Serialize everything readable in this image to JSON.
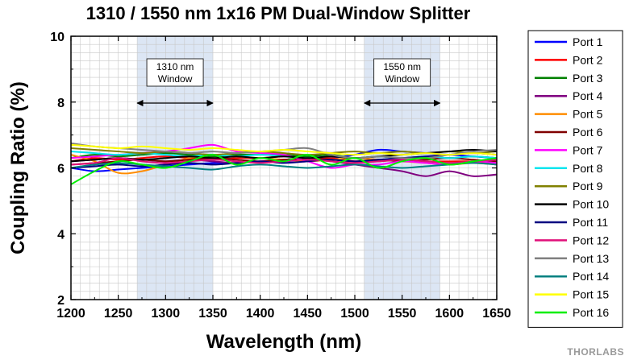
{
  "chart_data": {
    "type": "line",
    "title": "1310 / 1550 nm 1x16 PM Dual-Window Splitter",
    "xlabel": "Wavelength (nm)",
    "ylabel": "Coupling Ratio (%)",
    "xlim": [
      1200,
      1650
    ],
    "ylim": [
      2,
      10
    ],
    "xticks": [
      1200,
      1250,
      1300,
      1350,
      1400,
      1450,
      1500,
      1550,
      1600,
      1650
    ],
    "yticks": [
      2,
      4,
      6,
      8,
      10
    ],
    "grid": true,
    "legend_position": "right",
    "windows": [
      {
        "label_line1": "1310 nm",
        "label_line2": "Window",
        "x_start": 1270,
        "x_end": 1350
      },
      {
        "label_line1": "1550 nm",
        "label_line2": "Window",
        "x_start": 1510,
        "x_end": 1590
      }
    ],
    "x": [
      1200,
      1225,
      1250,
      1275,
      1300,
      1325,
      1350,
      1375,
      1400,
      1425,
      1450,
      1475,
      1500,
      1525,
      1550,
      1575,
      1600,
      1625,
      1650
    ],
    "series": [
      {
        "name": "Port 1",
        "color": "#0000ff",
        "values": [
          6.0,
          5.9,
          5.95,
          6.0,
          6.05,
          6.1,
          6.15,
          6.15,
          6.2,
          6.2,
          6.25,
          6.3,
          6.4,
          6.55,
          6.5,
          6.45,
          6.4,
          6.35,
          6.3
        ]
      },
      {
        "name": "Port 2",
        "color": "#ff0000",
        "values": [
          6.2,
          6.3,
          6.25,
          6.3,
          6.35,
          6.3,
          6.25,
          6.3,
          6.3,
          6.35,
          6.3,
          6.3,
          6.2,
          6.2,
          6.25,
          6.2,
          6.2,
          6.2,
          6.15
        ]
      },
      {
        "name": "Port 3",
        "color": "#008000",
        "values": [
          6.3,
          6.4,
          6.35,
          6.4,
          6.45,
          6.4,
          6.35,
          6.4,
          6.4,
          6.4,
          6.35,
          6.4,
          6.3,
          6.35,
          6.3,
          6.35,
          6.3,
          6.35,
          6.3
        ]
      },
      {
        "name": "Port 4",
        "color": "#800080",
        "values": [
          6.2,
          6.25,
          6.3,
          6.25,
          6.2,
          6.25,
          6.2,
          6.15,
          6.2,
          6.25,
          6.3,
          6.2,
          6.1,
          6.0,
          5.9,
          5.75,
          5.9,
          5.75,
          5.8
        ]
      },
      {
        "name": "Port 5",
        "color": "#ff8c00",
        "values": [
          6.4,
          6.2,
          5.85,
          5.9,
          6.1,
          6.3,
          6.4,
          6.35,
          6.3,
          6.25,
          6.2,
          6.25,
          6.3,
          6.25,
          6.2,
          6.15,
          6.1,
          6.15,
          6.1
        ]
      },
      {
        "name": "Port 6",
        "color": "#800000",
        "values": [
          6.1,
          6.15,
          6.2,
          6.25,
          6.2,
          6.25,
          6.3,
          6.25,
          6.2,
          6.25,
          6.3,
          6.25,
          6.2,
          6.25,
          6.2,
          6.25,
          6.3,
          6.25,
          6.2
        ]
      },
      {
        "name": "Port 7",
        "color": "#ff00ff",
        "values": [
          6.3,
          6.35,
          6.4,
          6.45,
          6.5,
          6.6,
          6.7,
          6.5,
          6.45,
          6.4,
          6.2,
          6.0,
          6.1,
          6.1,
          6.2,
          6.15,
          6.1,
          6.2,
          6.15
        ]
      },
      {
        "name": "Port 8",
        "color": "#00e5ee",
        "values": [
          6.5,
          6.45,
          6.4,
          6.45,
          6.4,
          6.35,
          6.4,
          6.35,
          6.4,
          6.35,
          6.3,
          6.35,
          6.3,
          6.35,
          6.3,
          6.35,
          6.3,
          6.35,
          6.3
        ]
      },
      {
        "name": "Port 9",
        "color": "#808000",
        "values": [
          6.6,
          6.55,
          6.5,
          6.45,
          6.5,
          6.45,
          6.4,
          6.45,
          6.5,
          6.45,
          6.4,
          6.45,
          6.5,
          6.45,
          6.5,
          6.45,
          6.5,
          6.45,
          6.5
        ]
      },
      {
        "name": "Port 10",
        "color": "#000000",
        "values": [
          6.2,
          6.25,
          6.3,
          6.25,
          6.3,
          6.35,
          6.3,
          6.35,
          6.3,
          6.35,
          6.3,
          6.35,
          6.3,
          6.35,
          6.4,
          6.45,
          6.5,
          6.55,
          6.5
        ]
      },
      {
        "name": "Port 11",
        "color": "#000080",
        "values": [
          6.0,
          6.05,
          6.1,
          6.05,
          6.1,
          6.15,
          6.1,
          6.15,
          6.2,
          6.15,
          6.2,
          6.25,
          6.2,
          6.25,
          6.3,
          6.35,
          6.4,
          6.45,
          6.4
        ]
      },
      {
        "name": "Port 12",
        "color": "#e0107a",
        "values": [
          6.1,
          6.15,
          6.3,
          6.2,
          6.15,
          6.2,
          6.25,
          6.2,
          6.15,
          6.2,
          6.25,
          6.2,
          6.15,
          6.2,
          6.25,
          6.2,
          6.15,
          6.2,
          6.25
        ]
      },
      {
        "name": "Port 13",
        "color": "#808080",
        "values": [
          6.75,
          6.65,
          6.6,
          6.55,
          6.5,
          6.45,
          6.5,
          6.45,
          6.5,
          6.55,
          6.6,
          6.4,
          6.3,
          6.35,
          6.3,
          6.3,
          6.4,
          6.5,
          6.55
        ]
      },
      {
        "name": "Port 14",
        "color": "#008080",
        "values": [
          6.0,
          6.1,
          6.15,
          6.1,
          6.05,
          6.0,
          5.95,
          6.05,
          6.1,
          6.05,
          6.0,
          6.05,
          6.1,
          6.05,
          6.0,
          6.05,
          6.1,
          6.15,
          6.1
        ]
      },
      {
        "name": "Port 15",
        "color": "#ffff00",
        "values": [
          6.7,
          6.65,
          6.6,
          6.65,
          6.6,
          6.55,
          6.6,
          6.55,
          6.5,
          6.55,
          6.5,
          6.45,
          6.4,
          6.45,
          6.4,
          6.45,
          6.4,
          6.45,
          6.4
        ]
      },
      {
        "name": "Port 16",
        "color": "#00ee00",
        "values": [
          5.5,
          5.9,
          6.2,
          6.1,
          6.0,
          6.2,
          6.4,
          6.1,
          6.3,
          6.2,
          6.4,
          6.1,
          6.3,
          6.0,
          6.2,
          6.3,
          6.1,
          6.2,
          6.3
        ]
      }
    ]
  },
  "brand": "THORLABS"
}
